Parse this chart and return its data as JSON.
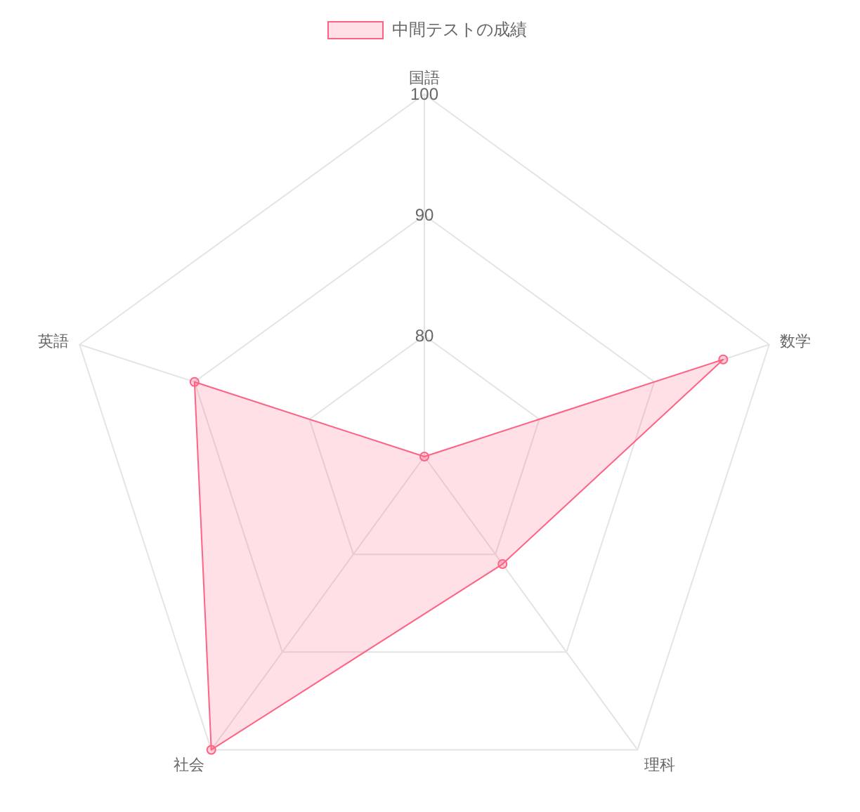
{
  "chart_data": {
    "type": "radar",
    "categories": [
      "国語",
      "数学",
      "理科",
      "社会",
      "英語"
    ],
    "series": [
      {
        "name": "中間テストの成績",
        "color": "#ff6384",
        "values": [
          70,
          96,
          81,
          100,
          90
        ]
      }
    ],
    "ylim": [
      70,
      100
    ],
    "yticks": [
      80,
      90,
      100
    ],
    "grid": true,
    "legend": "top",
    "marker": "circle"
  }
}
